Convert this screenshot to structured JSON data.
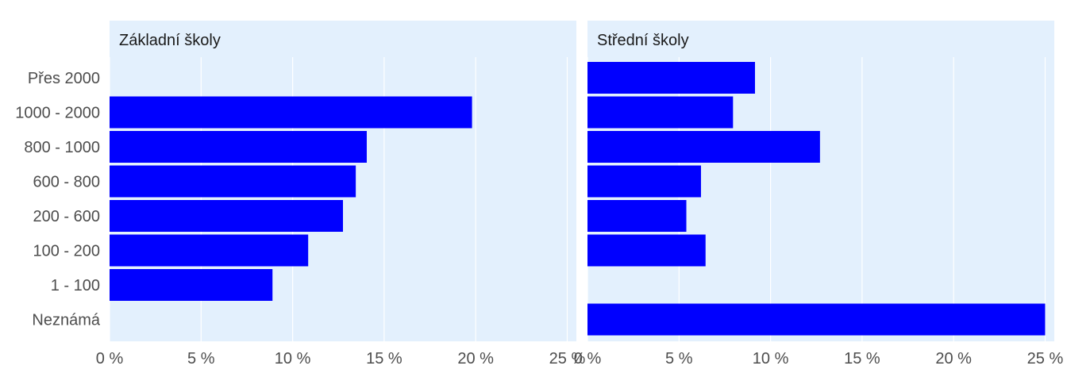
{
  "colors": {
    "panel_background": "#e3f0fd",
    "grid": "#ffffff",
    "bar": "#0000ff",
    "text": "#4d4d4d"
  },
  "chart_data": {
    "type": "bar",
    "orientation": "horizontal",
    "categories": [
      "Přes 2000",
      "1000 - 2000",
      "800 - 1000",
      "600 - 800",
      "200 - 600",
      "100 - 200",
      "1 - 100",
      "Neznámá"
    ],
    "xlim": [
      0,
      25.5
    ],
    "x_ticks": [
      0,
      5,
      10,
      15,
      20,
      25
    ],
    "x_tick_labels": [
      "0 %",
      "5 %",
      "10 %",
      "15 %",
      "20 %",
      "25 %"
    ],
    "grid": true,
    "panels": [
      {
        "title": "Základní školy",
        "values": [
          0,
          19.8,
          14.05,
          13.45,
          12.75,
          10.85,
          8.9,
          0
        ]
      },
      {
        "title": "Střední školy",
        "values": [
          9.15,
          7.95,
          12.7,
          6.2,
          5.4,
          6.45,
          0,
          25.0
        ]
      }
    ]
  }
}
